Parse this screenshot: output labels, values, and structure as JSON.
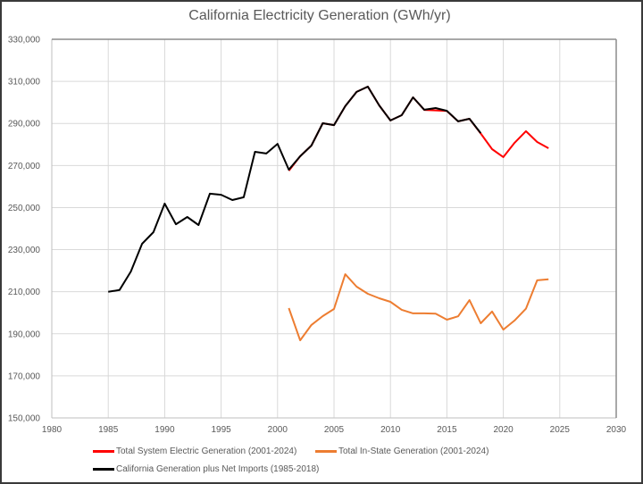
{
  "chart_data": {
    "type": "line",
    "title": "California Electricity Generation (GWh/yr)",
    "xlabel": "",
    "ylabel": "",
    "xlim": [
      1980,
      2030
    ],
    "ylim": [
      150000,
      330000
    ],
    "x_ticks": [
      1980,
      1985,
      1990,
      1995,
      2000,
      2005,
      2010,
      2015,
      2020,
      2025,
      2030
    ],
    "y_ticks": [
      150000,
      170000,
      190000,
      210000,
      230000,
      250000,
      270000,
      290000,
      310000,
      330000
    ],
    "x_tick_labels": [
      "1980",
      "1985",
      "1990",
      "1995",
      "2000",
      "2005",
      "2010",
      "2015",
      "2020",
      "2025",
      "2030"
    ],
    "y_tick_labels": [
      "150,000",
      "170,000",
      "190,000",
      "210,000",
      "230,000",
      "250,000",
      "270,000",
      "290,000",
      "310,000",
      "330,000"
    ],
    "grid": true,
    "legend_position": "bottom",
    "series": [
      {
        "name": "Total System Electric Generation (2001-2024)",
        "color": "#ff0000",
        "x": [
          2001,
          2002,
          2003,
          2004,
          2005,
          2006,
          2007,
          2008,
          2009,
          2010,
          2011,
          2012,
          2013,
          2014,
          2015,
          2016,
          2017,
          2018,
          2019,
          2020,
          2021,
          2022,
          2023,
          2024
        ],
        "values": [
          267500,
          274400,
          279500,
          290100,
          289200,
          298200,
          305000,
          307500,
          298600,
          291400,
          293900,
          302400,
          296400,
          296200,
          295900,
          291000,
          292200,
          285200,
          277800,
          274000,
          280800,
          286300,
          281200,
          278200
        ]
      },
      {
        "name": "Total In-State Generation (2001-2024)",
        "color": "#ed7d31",
        "x": [
          2001,
          2002,
          2003,
          2004,
          2005,
          2006,
          2007,
          2008,
          2009,
          2010,
          2011,
          2012,
          2013,
          2014,
          2015,
          2016,
          2017,
          2018,
          2019,
          2020,
          2021,
          2022,
          2023,
          2024
        ],
        "values": [
          202200,
          186900,
          194200,
          198400,
          201800,
          218300,
          212400,
          209000,
          206900,
          205200,
          201400,
          199700,
          199700,
          199600,
          196700,
          198300,
          206000,
          195000,
          200600,
          192000,
          196300,
          201900,
          215400,
          215900
        ]
      },
      {
        "name": "California Generation plus Net Imports (1985-2018)",
        "color": "#000000",
        "x": [
          1985,
          1986,
          1987,
          1988,
          1989,
          1990,
          1991,
          1992,
          1993,
          1994,
          1995,
          1996,
          1997,
          1998,
          1999,
          2000,
          2001,
          2002,
          2003,
          2004,
          2005,
          2006,
          2007,
          2008,
          2009,
          2010,
          2011,
          2012,
          2013,
          2014,
          2015,
          2016,
          2017,
          2018
        ],
        "values": [
          210000,
          210800,
          219600,
          232800,
          238300,
          251900,
          242100,
          245500,
          241700,
          256600,
          256100,
          253600,
          254900,
          276500,
          275700,
          280300,
          268000,
          274400,
          279500,
          290100,
          289200,
          298200,
          305000,
          307500,
          298600,
          291400,
          293900,
          302400,
          296500,
          297300,
          296000,
          291000,
          292200,
          285400
        ]
      }
    ]
  }
}
